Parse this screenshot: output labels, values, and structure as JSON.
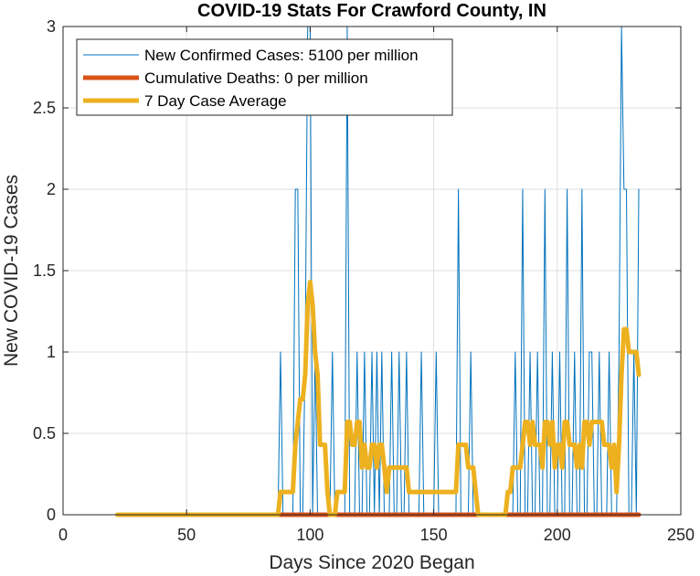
{
  "chart_data": {
    "type": "line",
    "title": "COVID-19 Stats For Crawford County, IN",
    "xlabel": "Days Since 2020 Began",
    "ylabel": "New COVID-19 Cases",
    "xlim": [
      0,
      250
    ],
    "ylim": [
      0,
      3
    ],
    "xticks": [
      0,
      50,
      100,
      150,
      200,
      250
    ],
    "yticks": [
      0,
      0.5,
      1,
      1.5,
      2,
      2.5,
      3
    ],
    "xtick_labels": [
      "0",
      "50",
      "100",
      "150",
      "200",
      "250"
    ],
    "ytick_labels": [
      "0",
      "0.5",
      "1",
      "1.5",
      "2",
      "2.5",
      "3"
    ],
    "grid": true,
    "legend_position": "top-left",
    "series": [
      {
        "name": "New Confirmed Cases: 5100 per million",
        "color": "#0072BD",
        "points": [
          [
            22,
            0
          ],
          [
            87,
            0
          ],
          [
            88,
            1
          ],
          [
            89,
            0
          ],
          [
            93,
            0
          ],
          [
            94,
            2
          ],
          [
            95,
            2
          ],
          [
            96,
            0
          ],
          [
            97,
            0
          ],
          [
            98,
            1
          ],
          [
            99,
            3
          ],
          [
            100,
            3
          ],
          [
            101,
            0
          ],
          [
            102,
            1
          ],
          [
            103,
            0
          ],
          [
            108,
            0
          ],
          [
            109,
            1
          ],
          [
            110,
            0
          ],
          [
            114,
            0
          ],
          [
            115,
            3
          ],
          [
            116,
            0
          ],
          [
            118,
            0
          ],
          [
            119,
            1
          ],
          [
            120,
            0
          ],
          [
            121,
            0
          ],
          [
            122,
            1
          ],
          [
            123,
            0
          ],
          [
            124,
            0
          ],
          [
            125,
            1
          ],
          [
            126,
            0
          ],
          [
            127,
            1
          ],
          [
            128,
            0
          ],
          [
            129,
            1
          ],
          [
            130,
            0
          ],
          [
            132,
            0
          ],
          [
            133,
            1
          ],
          [
            134,
            0
          ],
          [
            135,
            0
          ],
          [
            136,
            1
          ],
          [
            137,
            0
          ],
          [
            138,
            0
          ],
          [
            139,
            1
          ],
          [
            140,
            0
          ],
          [
            144,
            0
          ],
          [
            145,
            1
          ],
          [
            146,
            0
          ],
          [
            150,
            0
          ],
          [
            151,
            1
          ],
          [
            152,
            0
          ],
          [
            159,
            0
          ],
          [
            160,
            2
          ],
          [
            161,
            0
          ],
          [
            164,
            0
          ],
          [
            165,
            1
          ],
          [
            166,
            0
          ],
          [
            182,
            0
          ],
          [
            183,
            1
          ],
          [
            184,
            0
          ],
          [
            185,
            0
          ],
          [
            186,
            2
          ],
          [
            187,
            0
          ],
          [
            188,
            0
          ],
          [
            189,
            1
          ],
          [
            190,
            0
          ],
          [
            191,
            0
          ],
          [
            192,
            1
          ],
          [
            193,
            0
          ],
          [
            194,
            0
          ],
          [
            195,
            2
          ],
          [
            196,
            0
          ],
          [
            197,
            0
          ],
          [
            198,
            1
          ],
          [
            199,
            0
          ],
          [
            200,
            0
          ],
          [
            201,
            1
          ],
          [
            202,
            0
          ],
          [
            203,
            0
          ],
          [
            204,
            2
          ],
          [
            205,
            0
          ],
          [
            206,
            0
          ],
          [
            207,
            1
          ],
          [
            208,
            0
          ],
          [
            209,
            0
          ],
          [
            210,
            2
          ],
          [
            211,
            0
          ],
          [
            212,
            0
          ],
          [
            213,
            1
          ],
          [
            214,
            1
          ],
          [
            215,
            0
          ],
          [
            216,
            0
          ],
          [
            217,
            1
          ],
          [
            218,
            0
          ],
          [
            220,
            0
          ],
          [
            221,
            1
          ],
          [
            222,
            0
          ],
          [
            224,
            0
          ],
          [
            225,
            1
          ],
          [
            226,
            3
          ],
          [
            227,
            2
          ],
          [
            228,
            2
          ],
          [
            229,
            0
          ],
          [
            230,
            0
          ],
          [
            231,
            1
          ],
          [
            232,
            0
          ],
          [
            233,
            2
          ]
        ]
      },
      {
        "name": "Cumulative Deaths: 0 per million",
        "color": "#D95319",
        "points": [
          [
            86,
            0
          ],
          [
            233,
            0
          ]
        ]
      },
      {
        "name": "7 Day Case Average",
        "color": "#EDB120",
        "points": [
          [
            22,
            0
          ],
          [
            87,
            0
          ],
          [
            88,
            0.14
          ],
          [
            93,
            0.14
          ],
          [
            94,
            0.43
          ],
          [
            96,
            0.71
          ],
          [
            97,
            0.71
          ],
          [
            98,
            0.86
          ],
          [
            99,
            1.29
          ],
          [
            100,
            1.43
          ],
          [
            101,
            1.29
          ],
          [
            102,
            1
          ],
          [
            103,
            0.86
          ],
          [
            104,
            0.43
          ],
          [
            105,
            0.43
          ],
          [
            106,
            0.43
          ],
          [
            107,
            0.14
          ],
          [
            108,
            0
          ],
          [
            110,
            0
          ],
          [
            111,
            0.14
          ],
          [
            112,
            0.14
          ],
          [
            113,
            0.14
          ],
          [
            114,
            0.14
          ],
          [
            115,
            0.57
          ],
          [
            116,
            0.57
          ],
          [
            117,
            0.43
          ],
          [
            118,
            0.43
          ],
          [
            119,
            0.57
          ],
          [
            120,
            0.57
          ],
          [
            121,
            0.29
          ],
          [
            122,
            0.43
          ],
          [
            123,
            0.29
          ],
          [
            124,
            0.29
          ],
          [
            125,
            0.43
          ],
          [
            126,
            0.43
          ],
          [
            127,
            0.29
          ],
          [
            128,
            0.43
          ],
          [
            129,
            0.43
          ],
          [
            130,
            0.29
          ],
          [
            131,
            0.14
          ],
          [
            132,
            0.29
          ],
          [
            133,
            0.29
          ],
          [
            134,
            0.29
          ],
          [
            135,
            0.29
          ],
          [
            136,
            0.29
          ],
          [
            137,
            0.29
          ],
          [
            138,
            0.29
          ],
          [
            139,
            0.29
          ],
          [
            140,
            0.14
          ],
          [
            158,
            0.14
          ],
          [
            159,
            0.14
          ],
          [
            160,
            0.43
          ],
          [
            163,
            0.43
          ],
          [
            164,
            0.29
          ],
          [
            166,
            0.29
          ],
          [
            167,
            0.14
          ],
          [
            168,
            0
          ],
          [
            178,
            0
          ],
          [
            179,
            0
          ],
          [
            180,
            0.14
          ],
          [
            181,
            0.14
          ],
          [
            182,
            0.29
          ],
          [
            185,
            0.29
          ],
          [
            186,
            0.43
          ],
          [
            187,
            0.57
          ],
          [
            188,
            0.57
          ],
          [
            189,
            0.43
          ],
          [
            190,
            0.57
          ],
          [
            191,
            0.43
          ],
          [
            192,
            0.43
          ],
          [
            193,
            0.43
          ],
          [
            194,
            0.29
          ],
          [
            195,
            0.57
          ],
          [
            196,
            0.57
          ],
          [
            197,
            0.43
          ],
          [
            198,
            0.57
          ],
          [
            199,
            0.29
          ],
          [
            200,
            0.43
          ],
          [
            201,
            0.43
          ],
          [
            202,
            0.29
          ],
          [
            203,
            0.57
          ],
          [
            204,
            0.57
          ],
          [
            205,
            0.43
          ],
          [
            206,
            0.43
          ],
          [
            207,
            0.43
          ],
          [
            208,
            0.29
          ],
          [
            209,
            0.43
          ],
          [
            210,
            0.29
          ],
          [
            211,
            0.57
          ],
          [
            212,
            0.57
          ],
          [
            213,
            0.43
          ],
          [
            214,
            0.57
          ],
          [
            215,
            0.57
          ],
          [
            216,
            0.57
          ],
          [
            217,
            0.57
          ],
          [
            218,
            0.57
          ],
          [
            219,
            0.43
          ],
          [
            220,
            0.43
          ],
          [
            221,
            0.43
          ],
          [
            222,
            0.29
          ],
          [
            223,
            0.43
          ],
          [
            224,
            0.14
          ],
          [
            225,
            0.43
          ],
          [
            226,
            0.86
          ],
          [
            227,
            1.14
          ],
          [
            228,
            1.14
          ],
          [
            229,
            1
          ],
          [
            230,
            1
          ],
          [
            231,
            1
          ],
          [
            232,
            1
          ],
          [
            233,
            0.86
          ]
        ]
      }
    ],
    "colors": {
      "grid": "#dedede",
      "axis": "#262626",
      "background": "#ffffff"
    }
  }
}
